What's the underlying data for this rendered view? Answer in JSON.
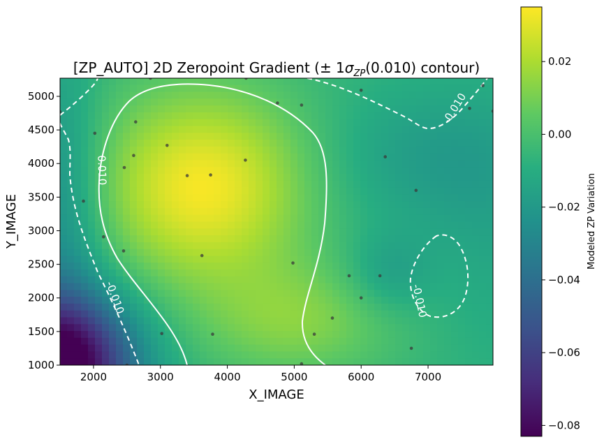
{
  "chart_data": {
    "type": "heatmap",
    "title_prefix": "[ZP_AUTO] 2D Zeropoint Gradient (± 1",
    "title_sigma": "σ",
    "title_sub": "ZP",
    "title_suffix": "(0.010) contour)",
    "xlabel": "X_IMAGE",
    "ylabel": "Y_IMAGE",
    "xlim": [
      1500,
      7970
    ],
    "ylim": [
      1000,
      5270
    ],
    "xticks": [
      2000,
      3000,
      4000,
      5000,
      6000,
      7000
    ],
    "yticks": [
      1000,
      1500,
      2000,
      2500,
      3000,
      3500,
      4000,
      4500,
      5000
    ],
    "colorbar": {
      "label": "Modeled ZP Variation",
      "range": [
        -0.083,
        0.035
      ],
      "ticks": [
        "0.02",
        "0.00",
        "−0.02",
        "−0.04",
        "−0.06",
        "−0.08"
      ],
      "tick_values": [
        0.02,
        0.0,
        -0.02,
        -0.04,
        -0.06,
        -0.08
      ],
      "colormap": "viridis"
    },
    "contours": {
      "levels": [
        -0.01,
        0.01
      ],
      "labels": [
        "0.010",
        "-0.010",
        "-0.010",
        "-0.010"
      ],
      "positive_style": "solid",
      "negative_style": "dashed",
      "color": "#ffffff"
    },
    "stars": {
      "x": [
        1500,
        2020,
        1850,
        2150,
        2460,
        2600,
        2630,
        2500,
        2450,
        3100,
        3400,
        3750,
        3620,
        3020,
        3780,
        2850,
        4270,
        4280,
        4750,
        5110,
        4980,
        5110,
        5300,
        5570,
        5820,
        6000,
        6000,
        6280,
        6360,
        6750,
        6820,
        7620,
        7820,
        7970
      ],
      "y": [
        4770,
        4450,
        3440,
        2910,
        3940,
        4120,
        4620,
        1000,
        2700,
        4270,
        3820,
        3830,
        2630,
        1470,
        1460,
        5270,
        4050,
        5270,
        4900,
        4870,
        2520,
        1020,
        1460,
        1700,
        2330,
        2000,
        5090,
        2330,
        4100,
        1250,
        3600,
        4820,
        5160,
        4780
      ],
      "color": "#3a3a3a"
    }
  }
}
